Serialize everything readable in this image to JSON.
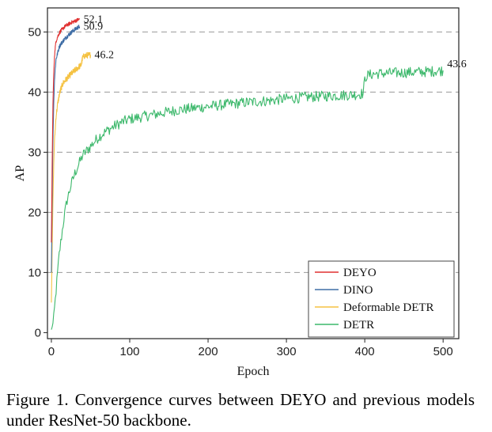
{
  "caption": "Figure 1. Convergence curves between DEYO and previous models under ResNet-50 backbone.",
  "chart_data": {
    "type": "line",
    "xlabel": "Epoch",
    "ylabel": "AP",
    "xlim": [
      -5,
      520
    ],
    "ylim": [
      -1,
      54
    ],
    "xticks": [
      0,
      100,
      200,
      300,
      400,
      500
    ],
    "yticks": [
      0,
      10,
      20,
      30,
      40,
      50
    ],
    "grid": "horizontal dashed",
    "legend_position": "bottom-right",
    "series": [
      {
        "name": "DETR",
        "color": "#3cb86b",
        "end_label": "43.6",
        "x": [
          0,
          2,
          4,
          6,
          8,
          10,
          13,
          16,
          20,
          25,
          30,
          35,
          40,
          50,
          60,
          70,
          80,
          90,
          100,
          120,
          140,
          160,
          180,
          200,
          220,
          250,
          280,
          300,
          330,
          360,
          390,
          398,
          400,
          402,
          410,
          420,
          440,
          460,
          480,
          500
        ],
        "y": [
          0.5,
          1.5,
          4,
          7,
          10,
          13,
          16,
          19,
          22,
          24.5,
          26.5,
          28,
          29.5,
          31,
          32.5,
          33.5,
          34.3,
          35,
          35.5,
          36,
          36.5,
          37,
          37.3,
          37.6,
          37.9,
          38.3,
          38.6,
          38.9,
          39.2,
          39.4,
          39.6,
          39.8,
          42.0,
          42.7,
          43.0,
          43.1,
          43.2,
          43.3,
          43.4,
          43.6
        ],
        "noise_amplitude": 0.9
      },
      {
        "name": "Deformable DETR",
        "color": "#f5c242",
        "end_label": "46.2",
        "x": [
          0,
          1,
          2,
          3,
          4,
          5,
          6,
          8,
          10,
          12,
          15,
          20,
          25,
          30,
          35,
          38,
          40,
          42,
          45,
          48,
          50
        ],
        "y": [
          5,
          14,
          22,
          28,
          32,
          34,
          36,
          38,
          39.5,
          40.5,
          41.5,
          42.3,
          43,
          43.6,
          44.2,
          44.5,
          45.8,
          46.0,
          46.1,
          46.15,
          46.2
        ],
        "noise_amplitude": 0.5
      },
      {
        "name": "DINO",
        "color": "#3f6ea6",
        "end_label": "50.9",
        "x": [
          0,
          1,
          2,
          3,
          4,
          5,
          6,
          8,
          10,
          12,
          15,
          18,
          22,
          26,
          30,
          33,
          36
        ],
        "y": [
          10,
          22,
          32,
          38,
          42,
          44,
          45.5,
          46.5,
          47.5,
          48,
          48.5,
          49,
          49.5,
          50,
          50.4,
          50.7,
          50.9
        ],
        "noise_amplitude": 0.35
      },
      {
        "name": "DEYO",
        "color": "#e03131",
        "end_label": "52.1",
        "x": [
          0,
          1,
          2,
          3,
          4,
          5,
          6,
          8,
          10,
          12,
          15,
          18,
          22,
          26,
          30,
          33,
          36
        ],
        "y": [
          15,
          28,
          38,
          43,
          46,
          47.5,
          48.5,
          49.2,
          49.8,
          50.2,
          50.6,
          51,
          51.3,
          51.6,
          51.8,
          52.0,
          52.1
        ],
        "noise_amplitude": 0.3
      }
    ],
    "legend_order": [
      "DEYO",
      "DINO",
      "Deformable DETR",
      "DETR"
    ]
  }
}
